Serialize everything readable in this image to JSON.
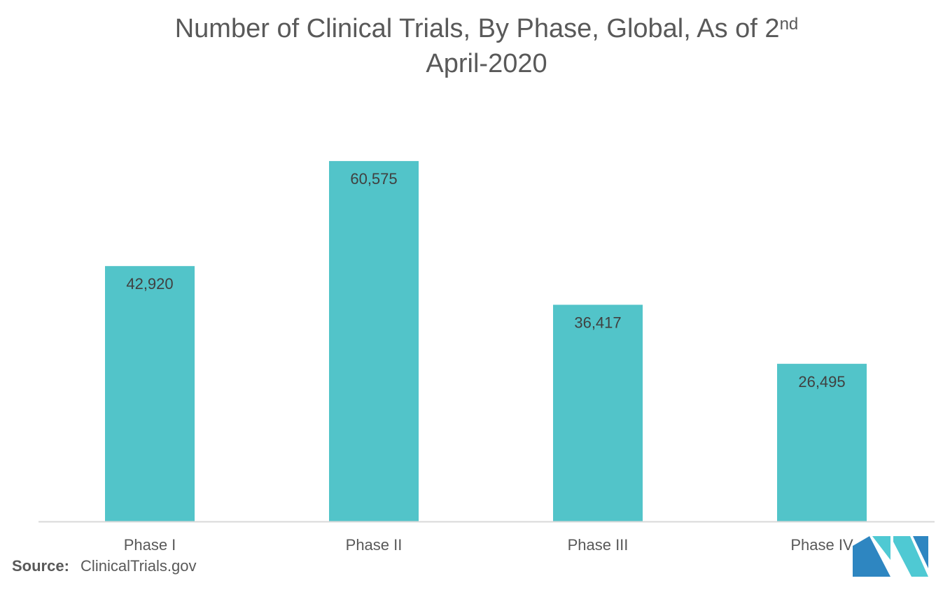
{
  "chart_data": {
    "type": "bar",
    "title_main": "Number of Clinical Trials, By Phase, Global, As of 2",
    "title_sup": "nd",
    "title_line2": "April-2020",
    "categories": [
      "Phase I",
      "Phase II",
      "Phase III",
      "Phase IV"
    ],
    "values": [
      42920,
      60575,
      36417,
      26495
    ],
    "value_labels": [
      "42,920",
      "60,575",
      "36,417",
      "26,495"
    ],
    "xlabel": "",
    "ylabel": "",
    "ylim": [
      0,
      70000
    ],
    "grid": false,
    "legend": "none",
    "bar_color": "#52C4C9",
    "axis_color": "#D9D9D9",
    "label_color": "#404040"
  },
  "source": {
    "label": "Source:",
    "text": "ClinicalTrials.gov"
  },
  "logo": {
    "icon": "mordor-intelligence-logo",
    "colors": [
      "#2E86C1",
      "#4FC9D3"
    ]
  }
}
